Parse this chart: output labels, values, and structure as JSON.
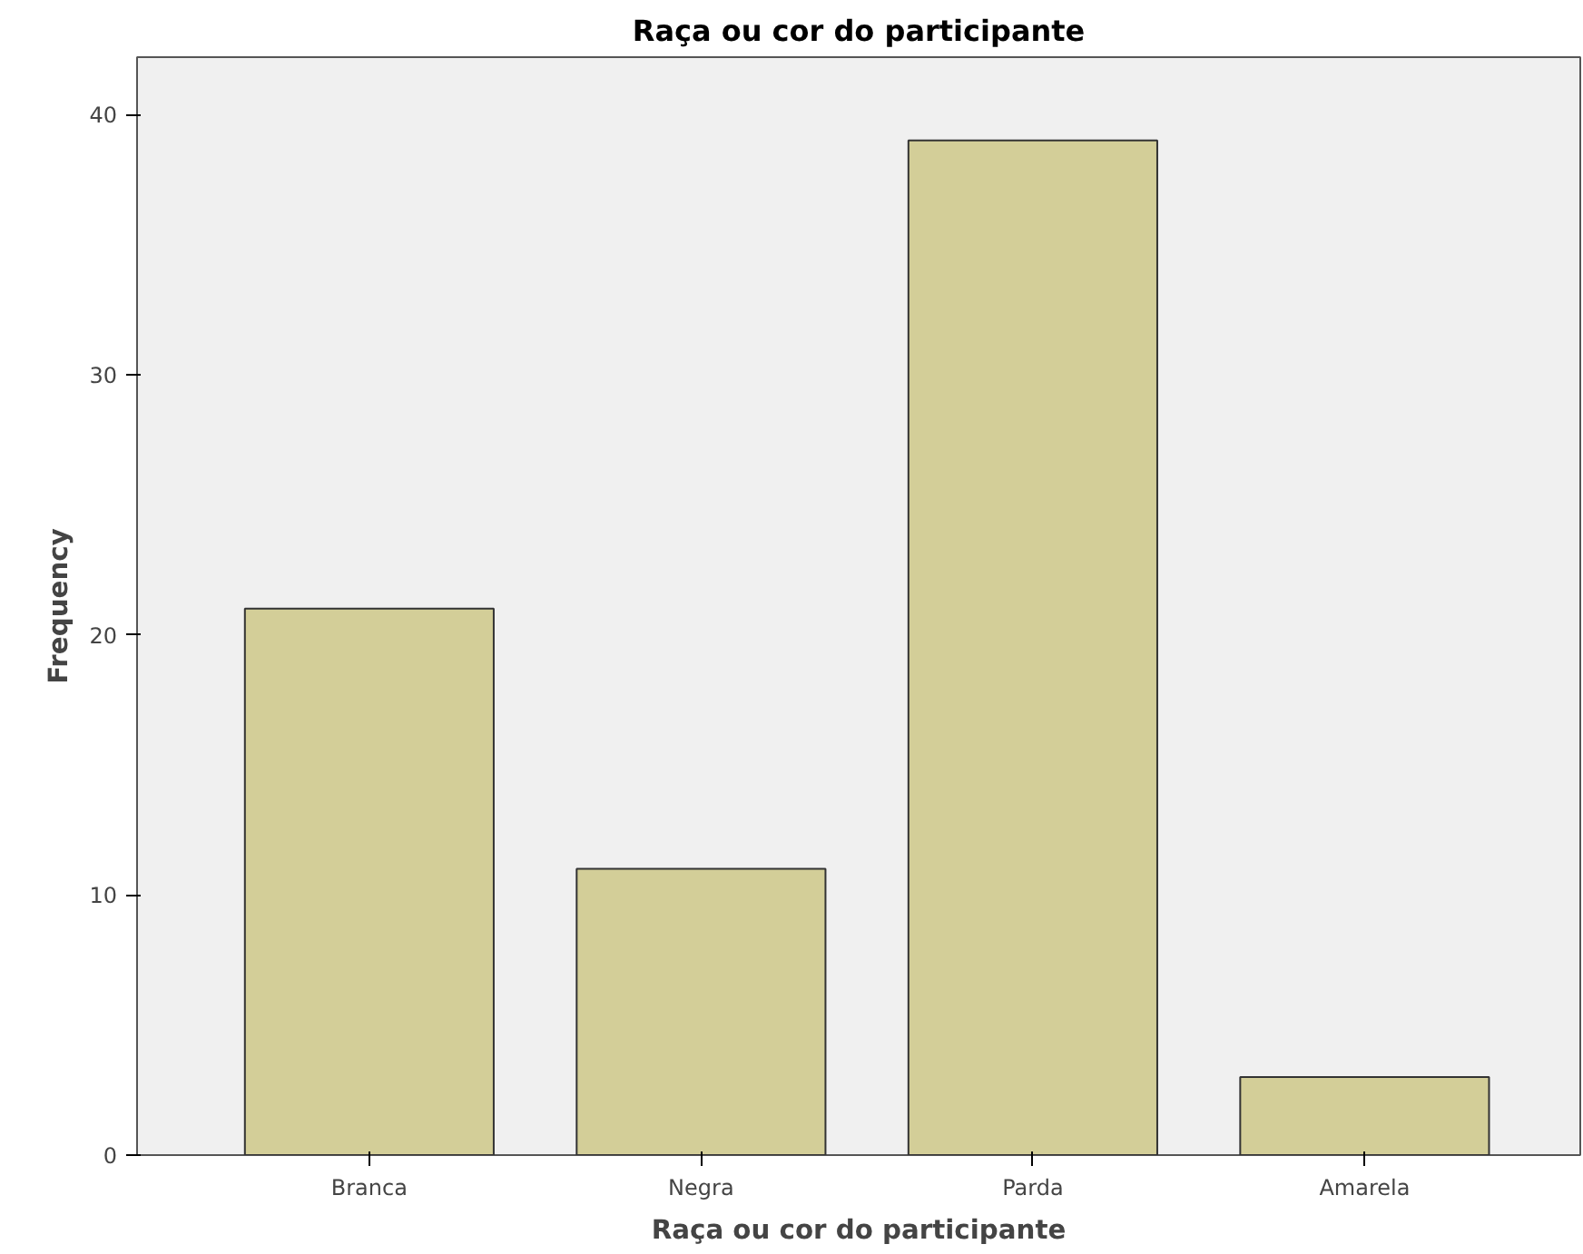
{
  "chart_data": {
    "type": "bar",
    "title": "Raça ou cor do participante",
    "xlabel": "Raça ou cor do participante",
    "ylabel": "Frequency",
    "categories": [
      "Branca",
      "Negra",
      "Parda",
      "Amarela"
    ],
    "values": [
      21,
      11,
      39,
      3
    ],
    "color": "#d3ce98",
    "ylim": [
      0,
      42.2
    ],
    "yticks": [
      0,
      10,
      20,
      30,
      40
    ],
    "grid": false
  }
}
